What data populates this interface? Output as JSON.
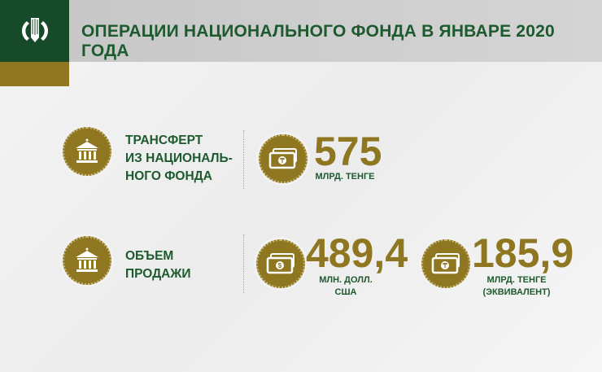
{
  "header": {
    "title": "ОПЕРАЦИИ НАЦИОНАЛЬНОГО ФОНДА В ЯНВАРЕ 2020 ГОДА",
    "logo_icon": "national-bank-emblem"
  },
  "colors": {
    "green": "#174a28",
    "gold": "#8e7720"
  },
  "transfer": {
    "label_lines": [
      "ТРАНСФЕРТ",
      "ИЗ НАЦИОНАЛЬ-",
      "НОГО ФОНДА"
    ],
    "icon": "bank-building-icon",
    "value": "575",
    "unit": "МЛРД. ТЕНГЕ",
    "value_icon": "tenge-banknote-icon"
  },
  "sale": {
    "label_lines": [
      "ОБЪЕМ",
      "ПРОДАЖИ"
    ],
    "icon": "bank-building-icon",
    "usd": {
      "value": "489,4",
      "unit_lines": [
        "МЛН. ДОЛЛ.",
        "США"
      ],
      "icon": "dollar-banknote-icon"
    },
    "kzt": {
      "value": "185,9",
      "unit_lines": [
        "МЛРД. ТЕНГЕ",
        "(ЭКВИВАЛЕНТ)"
      ],
      "icon": "tenge-banknote-icon"
    }
  }
}
